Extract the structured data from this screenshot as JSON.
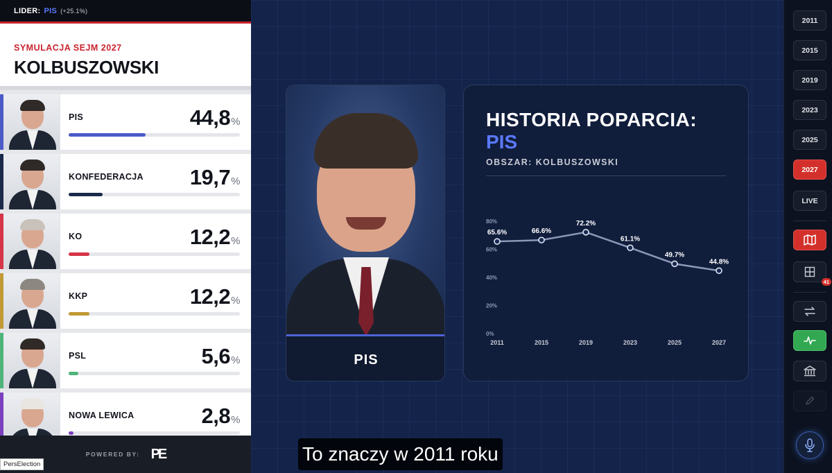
{
  "leader": {
    "label": "LIDER:",
    "party": "PIS",
    "delta": "(+25.1%)"
  },
  "header": {
    "subtitle": "SYMULACJA SEJM 2027",
    "title": "KOLBUSZOWSKI"
  },
  "results": [
    {
      "party": "PIS",
      "value": "44,8",
      "unit": "%",
      "share": 44.8,
      "color": "#4a5bc7"
    },
    {
      "party": "KONFEDERACJA",
      "value": "19,7",
      "unit": "%",
      "share": 19.7,
      "color": "#1b2a4a"
    },
    {
      "party": "KO",
      "value": "12,2",
      "unit": "%",
      "share": 12.2,
      "color": "#d63447"
    },
    {
      "party": "KKP",
      "value": "12,2",
      "unit": "%",
      "share": 12.2,
      "color": "#c19a35"
    },
    {
      "party": "PSL",
      "value": "5,6",
      "unit": "%",
      "share": 5.6,
      "color": "#4fb47a"
    },
    {
      "party": "NOWA LEWICA",
      "value": "2,8",
      "unit": "%",
      "share": 2.8,
      "color": "#7b3fbf"
    }
  ],
  "footer": {
    "powered_by": "POWERED BY:",
    "logo": "PE"
  },
  "brand_tag": "PersElection",
  "candidate_card": {
    "party": "PIS"
  },
  "history": {
    "title": "HISTORIA POPARCIA:",
    "party": "PIS",
    "area": "OBSZAR: KOLBUSZOWSKI"
  },
  "chart_data": {
    "type": "line",
    "x": [
      "2011",
      "2015",
      "2019",
      "2023",
      "2025",
      "2027"
    ],
    "series": [
      {
        "values": [
          65.6,
          66.6,
          72.2,
          61.1,
          49.7,
          44.8
        ],
        "labels": [
          "65.6%",
          "66.6%",
          "72.2%",
          "61.1%",
          "49.7%",
          "44.8%"
        ]
      }
    ],
    "yticks": [
      "0%",
      "20%",
      "40%",
      "60%",
      "80%"
    ],
    "ylim": [
      0,
      80
    ],
    "grid": false,
    "title": "",
    "xlabel": "",
    "ylabel": ""
  },
  "subtitle": "To znaczy w 2011 roku",
  "toolbar": {
    "years": [
      "2011",
      "2015",
      "2019",
      "2023",
      "2025",
      "2027",
      "LIVE"
    ],
    "active_year": "2027",
    "grid_badge": "41",
    "icons": [
      "map-icon",
      "grid-icon",
      "swap-icon",
      "trend-icon",
      "parliament-icon",
      "pencil-icon",
      "mic-icon"
    ]
  }
}
